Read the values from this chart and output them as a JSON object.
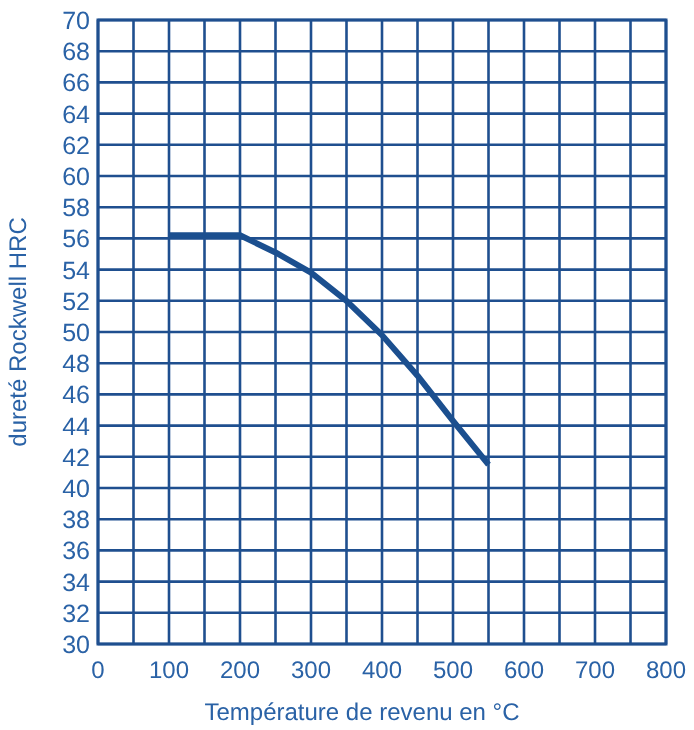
{
  "chart_data": {
    "type": "line",
    "xlabel": "Température de revenu en °C",
    "ylabel": "dureté Rockwell HRC",
    "x": [
      100,
      200,
      250,
      300,
      350,
      400,
      450,
      500,
      550
    ],
    "series": [
      {
        "color": "#1b4f8f",
        "values": [
          56.2,
          56.2,
          55.1,
          53.8,
          52,
          49.8,
          47.2,
          44.3,
          41.5
        ]
      }
    ],
    "xlim": [
      0,
      800
    ],
    "xticks": [
      0,
      {
        "value": 50,
        "label": null
      },
      100,
      {
        "value": 150,
        "label": null
      },
      200,
      {
        "value": 250,
        "label": null
      },
      300,
      {
        "value": 350,
        "label": null
      },
      400,
      {
        "value": 450,
        "label": null
      },
      500,
      {
        "value": 550,
        "label": null
      },
      600,
      {
        "value": 650,
        "label": null
      },
      700,
      {
        "value": 750,
        "label": null
      },
      800
    ],
    "ylim": [
      30,
      70
    ],
    "yticks": [
      30,
      32,
      34,
      36,
      38,
      40,
      42,
      44,
      46,
      48,
      50,
      52,
      54,
      56,
      58,
      60,
      62,
      64,
      66,
      68,
      70
    ],
    "grid": true,
    "marker": "none",
    "line_style": "solid"
  }
}
